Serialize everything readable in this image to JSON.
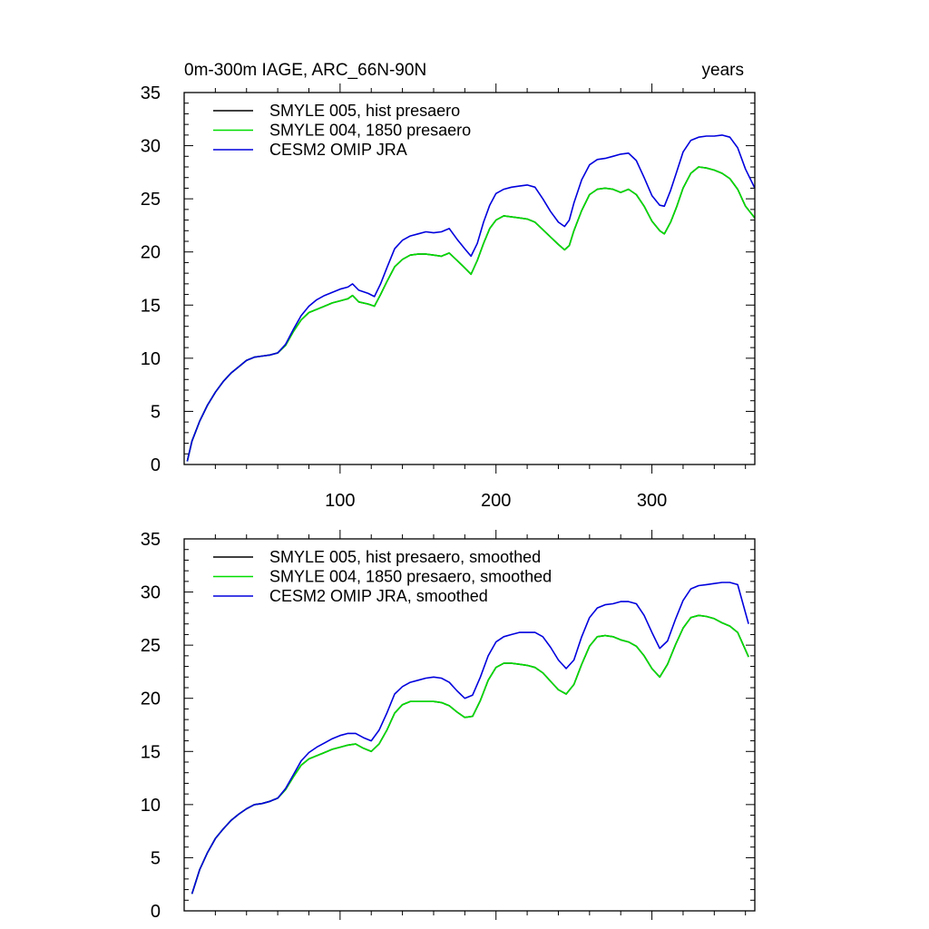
{
  "chart_data": [
    {
      "type": "line",
      "title_left": "0m-300m IAGE, ARC_66N-90N",
      "title_right": "years",
      "xlabel": "",
      "ylabel": "",
      "xlim": [
        0,
        366
      ],
      "ylim": [
        0,
        35
      ],
      "yticks": [
        0,
        5,
        10,
        15,
        20,
        25,
        30,
        35
      ],
      "xticks": [
        100,
        200,
        300
      ],
      "xtick_labels_visible": true,
      "legend_position": "top-left",
      "grid": false,
      "series": [
        {
          "name": "SMYLE 005, hist presaero",
          "color": "#000000",
          "x": [
            2,
            5,
            10,
            15,
            20,
            25,
            30,
            35,
            40,
            45,
            50,
            55,
            60,
            65,
            70,
            75,
            80,
            85,
            90,
            95,
            100,
            105,
            108,
            112,
            118,
            122,
            126,
            130,
            135,
            140,
            145,
            150,
            155,
            160,
            165,
            170,
            175,
            180,
            184,
            188,
            192,
            196,
            200,
            205,
            210,
            215,
            220,
            225,
            230,
            235,
            240,
            244,
            247,
            250,
            255,
            260,
            265,
            270,
            275,
            280,
            285,
            290,
            295,
            300,
            305,
            308,
            312,
            316,
            320,
            325,
            330,
            335,
            340,
            345,
            350,
            355,
            360,
            366
          ],
          "y": [
            0.3,
            2.2,
            4.1,
            5.6,
            6.8,
            7.8,
            8.6,
            9.2,
            9.8,
            10.1,
            10.2,
            10.3,
            10.5,
            11.2,
            12.5,
            13.6,
            14.3,
            14.6,
            14.9,
            15.2,
            15.4,
            15.6,
            15.9,
            15.3,
            15.1,
            14.9,
            16.0,
            17.2,
            18.6,
            19.3,
            19.7,
            19.8,
            19.8,
            19.7,
            19.6,
            19.9,
            19.2,
            18.5,
            17.9,
            19.2,
            20.8,
            22.2,
            23.0,
            23.4,
            23.3,
            23.2,
            23.1,
            22.8,
            22.1,
            21.4,
            20.7,
            20.2,
            20.6,
            22.0,
            23.9,
            25.4,
            25.9,
            26.0,
            25.9,
            25.6,
            25.9,
            25.4,
            24.3,
            22.9,
            22.0,
            21.7,
            22.8,
            24.3,
            26.0,
            27.4,
            28.0,
            27.9,
            27.7,
            27.4,
            26.9,
            25.9,
            24.3,
            23.2
          ]
        },
        {
          "name": "SMYLE 004, 1850 presaero",
          "color": "#00dd00",
          "x": [
            2,
            5,
            10,
            15,
            20,
            25,
            30,
            35,
            40,
            45,
            50,
            55,
            60,
            65,
            70,
            75,
            80,
            85,
            90,
            95,
            100,
            105,
            108,
            112,
            118,
            122,
            126,
            130,
            135,
            140,
            145,
            150,
            155,
            160,
            165,
            170,
            175,
            180,
            184,
            188,
            192,
            196,
            200,
            205,
            210,
            215,
            220,
            225,
            230,
            235,
            240,
            244,
            247,
            250,
            255,
            260,
            265,
            270,
            275,
            280,
            285,
            290,
            295,
            300,
            305,
            308,
            312,
            316,
            320,
            325,
            330,
            335,
            340,
            345,
            350,
            355,
            360,
            366
          ],
          "y": [
            0.3,
            2.2,
            4.1,
            5.6,
            6.8,
            7.8,
            8.6,
            9.2,
            9.8,
            10.1,
            10.2,
            10.3,
            10.5,
            11.2,
            12.5,
            13.6,
            14.3,
            14.6,
            14.9,
            15.2,
            15.4,
            15.6,
            15.9,
            15.3,
            15.1,
            14.9,
            16.0,
            17.2,
            18.6,
            19.3,
            19.7,
            19.8,
            19.8,
            19.7,
            19.6,
            19.9,
            19.2,
            18.5,
            17.9,
            19.2,
            20.8,
            22.2,
            23.0,
            23.4,
            23.3,
            23.2,
            23.1,
            22.8,
            22.1,
            21.4,
            20.7,
            20.2,
            20.6,
            22.0,
            23.9,
            25.4,
            25.9,
            26.0,
            25.9,
            25.6,
            25.9,
            25.4,
            24.3,
            22.9,
            22.0,
            21.7,
            22.8,
            24.3,
            26.0,
            27.4,
            28.0,
            27.9,
            27.7,
            27.4,
            26.9,
            25.9,
            24.3,
            23.2
          ]
        },
        {
          "name": "CESM2 OMIP JRA",
          "color": "#0000dd",
          "x": [
            2,
            5,
            10,
            15,
            20,
            25,
            30,
            35,
            40,
            45,
            50,
            55,
            60,
            65,
            70,
            75,
            80,
            85,
            90,
            95,
            100,
            105,
            108,
            112,
            118,
            122,
            126,
            130,
            135,
            140,
            145,
            150,
            155,
            160,
            165,
            170,
            175,
            180,
            184,
            188,
            192,
            196,
            200,
            205,
            210,
            215,
            220,
            225,
            230,
            235,
            240,
            244,
            247,
            250,
            255,
            260,
            265,
            270,
            275,
            280,
            285,
            290,
            295,
            300,
            305,
            308,
            312,
            316,
            320,
            325,
            330,
            335,
            340,
            345,
            350,
            355,
            360,
            366
          ],
          "y": [
            0.3,
            2.2,
            4.1,
            5.6,
            6.8,
            7.8,
            8.6,
            9.2,
            9.8,
            10.1,
            10.2,
            10.3,
            10.5,
            11.3,
            12.7,
            14.0,
            14.9,
            15.5,
            15.9,
            16.2,
            16.5,
            16.7,
            17.0,
            16.4,
            16.1,
            15.8,
            17.0,
            18.5,
            20.3,
            21.1,
            21.5,
            21.7,
            21.9,
            21.8,
            21.9,
            22.2,
            21.2,
            20.3,
            19.6,
            20.8,
            22.8,
            24.4,
            25.5,
            25.9,
            26.1,
            26.2,
            26.3,
            26.1,
            25.0,
            23.8,
            22.8,
            22.4,
            23.0,
            24.6,
            26.8,
            28.2,
            28.7,
            28.8,
            29.0,
            29.2,
            29.3,
            28.6,
            27.0,
            25.3,
            24.4,
            24.3,
            25.8,
            27.6,
            29.4,
            30.5,
            30.8,
            30.9,
            30.9,
            31.0,
            30.8,
            29.8,
            27.8,
            26.0
          ]
        }
      ]
    },
    {
      "type": "line",
      "title_left": "",
      "title_right": "",
      "xlabel": "",
      "ylabel": "",
      "xlim": [
        0,
        366
      ],
      "ylim": [
        0,
        35
      ],
      "yticks": [
        0,
        5,
        10,
        15,
        20,
        25,
        30,
        35
      ],
      "xticks": [
        100,
        200,
        300
      ],
      "xtick_labels_visible": false,
      "legend_position": "top-left",
      "grid": false,
      "series": [
        {
          "name": "SMYLE 005, hist presaero, smoothed",
          "color": "#000000",
          "x": [
            5,
            10,
            15,
            20,
            25,
            30,
            35,
            40,
            45,
            50,
            55,
            60,
            65,
            70,
            75,
            80,
            85,
            90,
            95,
            100,
            105,
            110,
            115,
            120,
            125,
            130,
            135,
            140,
            145,
            150,
            155,
            160,
            165,
            170,
            175,
            180,
            185,
            190,
            195,
            200,
            205,
            210,
            215,
            220,
            225,
            230,
            235,
            240,
            245,
            250,
            255,
            260,
            265,
            270,
            275,
            280,
            285,
            290,
            295,
            300,
            305,
            310,
            315,
            320,
            325,
            330,
            335,
            340,
            345,
            350,
            355,
            362
          ],
          "y": [
            1.6,
            3.9,
            5.5,
            6.8,
            7.7,
            8.5,
            9.1,
            9.6,
            10.0,
            10.1,
            10.3,
            10.6,
            11.4,
            12.6,
            13.7,
            14.3,
            14.6,
            14.9,
            15.2,
            15.4,
            15.6,
            15.7,
            15.3,
            15.0,
            15.7,
            17.0,
            18.6,
            19.4,
            19.7,
            19.7,
            19.7,
            19.7,
            19.6,
            19.3,
            18.7,
            18.2,
            18.3,
            19.8,
            21.7,
            22.9,
            23.3,
            23.3,
            23.2,
            23.1,
            22.9,
            22.4,
            21.6,
            20.8,
            20.4,
            21.3,
            23.2,
            24.9,
            25.8,
            25.9,
            25.8,
            25.5,
            25.3,
            24.9,
            24.0,
            22.8,
            22.0,
            23.2,
            25.0,
            26.6,
            27.6,
            27.8,
            27.7,
            27.5,
            27.1,
            26.8,
            26.2,
            23.9
          ]
        },
        {
          "name": "SMYLE 004, 1850 presaero, smoothed",
          "color": "#00dd00",
          "x": [
            5,
            10,
            15,
            20,
            25,
            30,
            35,
            40,
            45,
            50,
            55,
            60,
            65,
            70,
            75,
            80,
            85,
            90,
            95,
            100,
            105,
            110,
            115,
            120,
            125,
            130,
            135,
            140,
            145,
            150,
            155,
            160,
            165,
            170,
            175,
            180,
            185,
            190,
            195,
            200,
            205,
            210,
            215,
            220,
            225,
            230,
            235,
            240,
            245,
            250,
            255,
            260,
            265,
            270,
            275,
            280,
            285,
            290,
            295,
            300,
            305,
            310,
            315,
            320,
            325,
            330,
            335,
            340,
            345,
            350,
            355,
            362
          ],
          "y": [
            1.6,
            3.9,
            5.5,
            6.8,
            7.7,
            8.5,
            9.1,
            9.6,
            10.0,
            10.1,
            10.3,
            10.6,
            11.4,
            12.6,
            13.7,
            14.3,
            14.6,
            14.9,
            15.2,
            15.4,
            15.6,
            15.7,
            15.3,
            15.0,
            15.7,
            17.0,
            18.6,
            19.4,
            19.7,
            19.7,
            19.7,
            19.7,
            19.6,
            19.3,
            18.7,
            18.2,
            18.3,
            19.8,
            21.7,
            22.9,
            23.3,
            23.3,
            23.2,
            23.1,
            22.9,
            22.4,
            21.6,
            20.8,
            20.4,
            21.3,
            23.2,
            24.9,
            25.8,
            25.9,
            25.8,
            25.5,
            25.3,
            24.9,
            24.0,
            22.8,
            22.0,
            23.2,
            25.0,
            26.6,
            27.6,
            27.8,
            27.7,
            27.5,
            27.1,
            26.8,
            26.2,
            23.9
          ]
        },
        {
          "name": "CESM2 OMIP JRA, smoothed",
          "color": "#0000dd",
          "x": [
            5,
            10,
            15,
            20,
            25,
            30,
            35,
            40,
            45,
            50,
            55,
            60,
            65,
            70,
            75,
            80,
            85,
            90,
            95,
            100,
            105,
            110,
            115,
            120,
            125,
            130,
            135,
            140,
            145,
            150,
            155,
            160,
            165,
            170,
            175,
            180,
            185,
            190,
            195,
            200,
            205,
            210,
            215,
            220,
            225,
            230,
            235,
            240,
            245,
            250,
            255,
            260,
            265,
            270,
            275,
            280,
            285,
            290,
            295,
            300,
            305,
            310,
            315,
            320,
            325,
            330,
            335,
            340,
            345,
            350,
            355,
            362
          ],
          "y": [
            1.6,
            3.9,
            5.5,
            6.8,
            7.7,
            8.5,
            9.1,
            9.6,
            10.0,
            10.1,
            10.3,
            10.6,
            11.5,
            12.8,
            14.1,
            14.9,
            15.4,
            15.8,
            16.2,
            16.5,
            16.7,
            16.7,
            16.3,
            16.0,
            17.0,
            18.6,
            20.4,
            21.1,
            21.5,
            21.7,
            21.9,
            22.0,
            21.9,
            21.5,
            20.7,
            20.0,
            20.3,
            22.0,
            24.0,
            25.3,
            25.8,
            26.0,
            26.2,
            26.2,
            26.2,
            25.8,
            24.8,
            23.6,
            22.8,
            23.6,
            25.8,
            27.6,
            28.5,
            28.8,
            28.9,
            29.1,
            29.1,
            28.9,
            27.8,
            26.2,
            24.7,
            25.4,
            27.4,
            29.2,
            30.3,
            30.6,
            30.7,
            30.8,
            30.9,
            30.9,
            30.7,
            27.0
          ]
        }
      ]
    }
  ]
}
